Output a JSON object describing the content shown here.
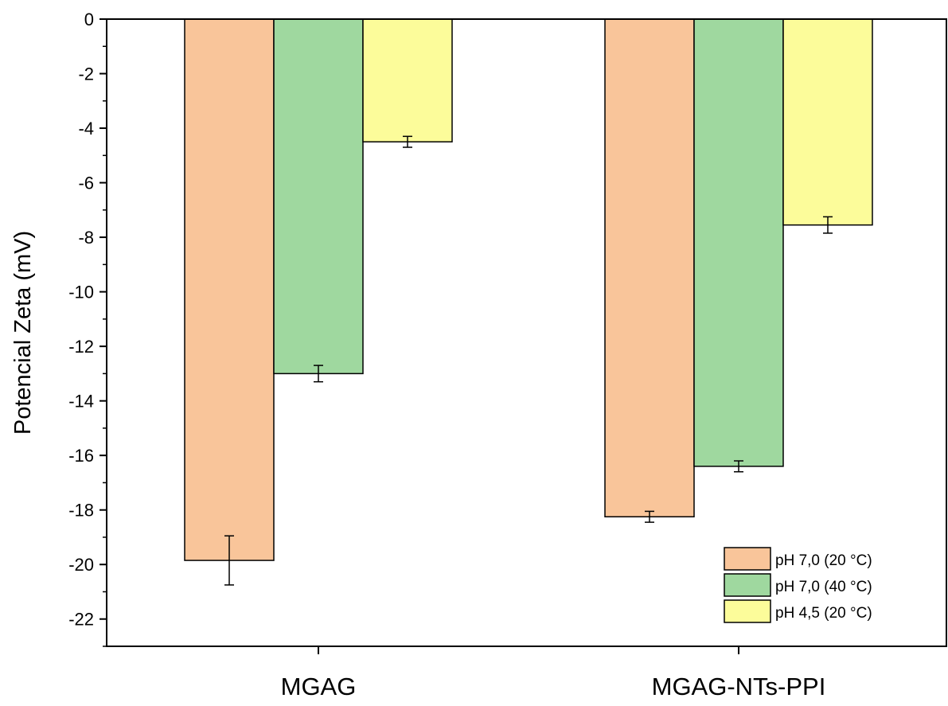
{
  "chart_data": {
    "type": "bar",
    "title": "",
    "xlabel": "",
    "ylabel": "Potencial Zeta (mV)",
    "ylim": [
      -23,
      0
    ],
    "yticks": [
      0,
      -2,
      -4,
      -6,
      -8,
      -10,
      -12,
      -14,
      -16,
      -18,
      -20,
      -22
    ],
    "categories": [
      "MGAG",
      "MGAG-NTs-PPI"
    ],
    "series": [
      {
        "name": "pH 7,0 (20 °C)",
        "color": "#f9c59a",
        "values": [
          -19.85,
          -18.25
        ],
        "errors": [
          0.9,
          0.2
        ]
      },
      {
        "name": "pH 7,0 (40 °C)",
        "color": "#9fd89f",
        "values": [
          -13.0,
          -16.4
        ],
        "errors": [
          0.3,
          0.2
        ]
      },
      {
        "name": "pH 4,5 (20 °C)",
        "color": "#fcfc9a",
        "values": [
          -4.5,
          -7.55
        ],
        "errors": [
          0.2,
          0.3
        ]
      }
    ],
    "grid": false,
    "legend_position": "bottom-right"
  }
}
